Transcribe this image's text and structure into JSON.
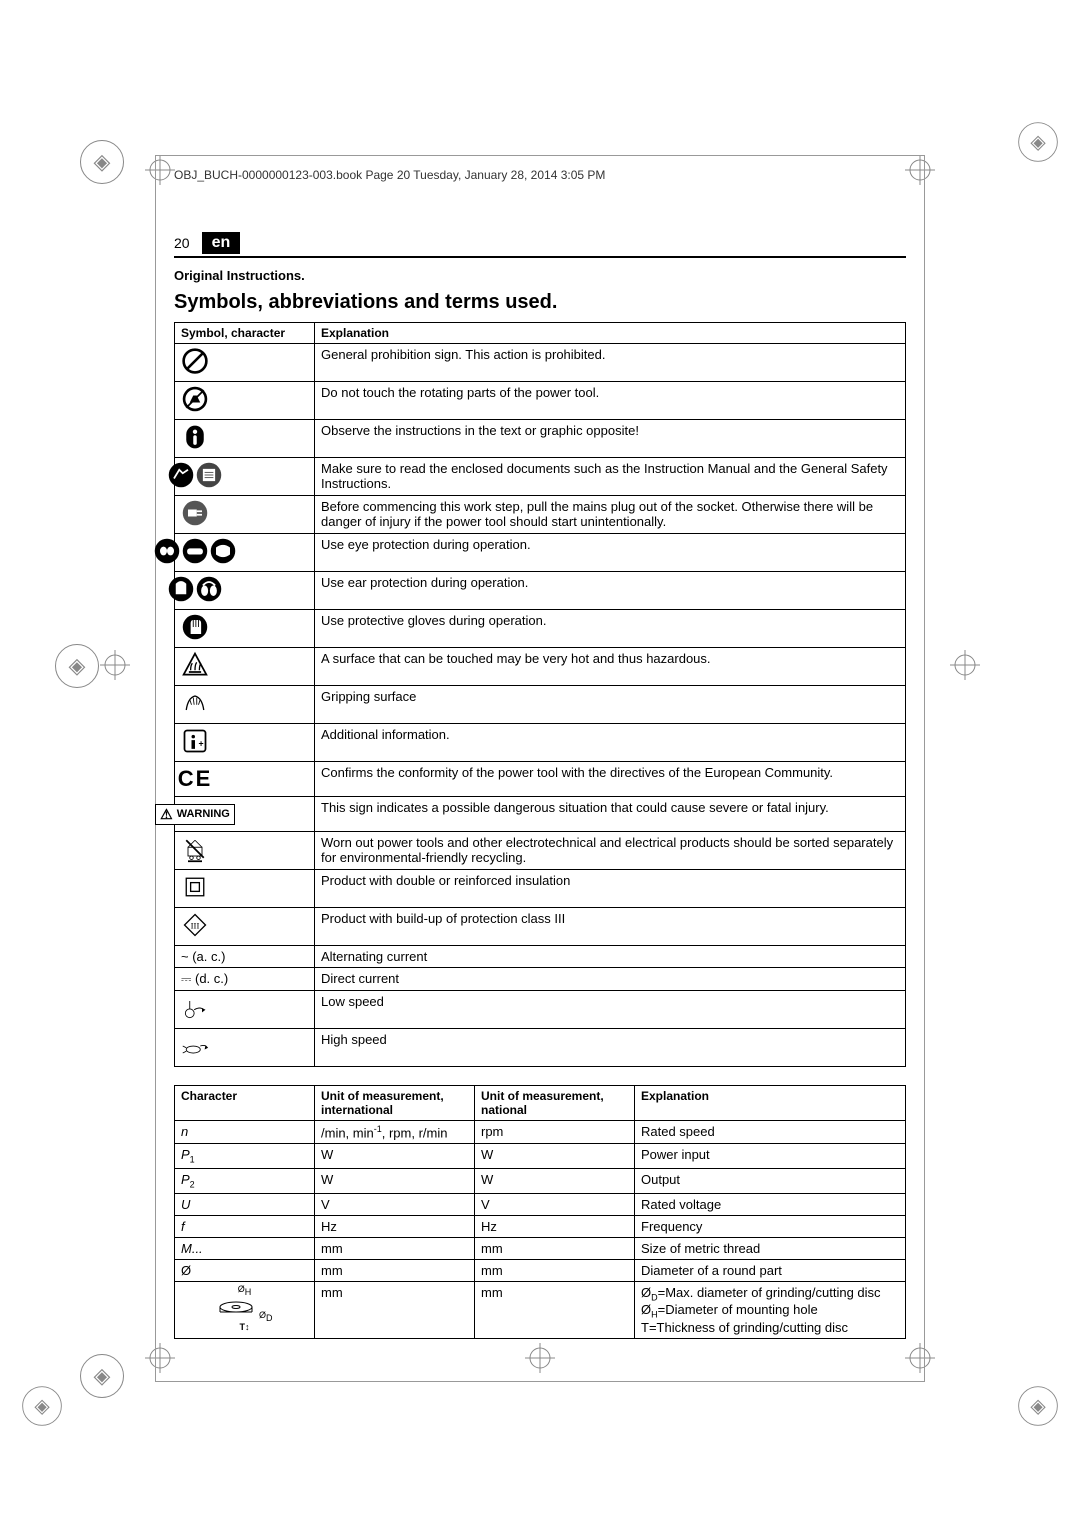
{
  "header": "OBJ_BUCH-0000000123-003.book  Page 20  Tuesday, January 28, 2014  3:05 PM",
  "page_number": "20",
  "lang": "en",
  "original": "Original Instructions.",
  "title": "Symbols, abbreviations and terms used.",
  "sym_headers": {
    "c1": "Symbol, character",
    "c2": "Explanation"
  },
  "symbols": [
    {
      "name": "prohibition-icon",
      "exp": "General prohibition sign. This action is prohibited."
    },
    {
      "name": "no-touch-icon",
      "exp": "Do not touch the rotating parts of the power tool."
    },
    {
      "name": "observe-icon",
      "exp": "Observe the instructions in the text or graphic opposite!"
    },
    {
      "name": "read-docs-icon",
      "exp": "Make sure to read the enclosed documents such as the Instruction Manual and the General Safety Instructions."
    },
    {
      "name": "unplug-icon",
      "exp": "Before commencing this work step, pull the mains plug out of the socket. Otherwise there will be danger of injury if the power tool should start unintentionally."
    },
    {
      "name": "eye-protection-icon",
      "exp": "Use eye protection during operation."
    },
    {
      "name": "ear-protection-icon",
      "exp": "Use ear protection during operation."
    },
    {
      "name": "gloves-icon",
      "exp": "Use protective gloves during operation."
    },
    {
      "name": "hot-surface-icon",
      "exp": "A surface that can be touched may be very hot and thus hazardous."
    },
    {
      "name": "grip-icon",
      "exp": "Gripping surface"
    },
    {
      "name": "info-icon",
      "exp": "Additional information."
    },
    {
      "name": "ce-icon",
      "exp": "Confirms the conformity of the power tool with the directives of the European Community."
    },
    {
      "name": "warning-badge",
      "exp": "This sign indicates a possible dangerous situation that could cause severe or fatal injury."
    },
    {
      "name": "weee-icon",
      "exp": "Worn out power tools and other electrotechnical and electrical products should be sorted separately for environmental-friendly recycling."
    },
    {
      "name": "class2-icon",
      "exp": "Product with double or reinforced insulation"
    },
    {
      "name": "class3-icon",
      "exp": "Product with build-up of protection class III"
    },
    {
      "name": "ac-icon",
      "char": "~ (a. c.)",
      "exp": "Alternating current"
    },
    {
      "name": "dc-icon",
      "char": "⎓ (d. c.)",
      "exp": "Direct current"
    },
    {
      "name": "low-speed-icon",
      "exp": "Low speed"
    },
    {
      "name": "high-speed-icon",
      "exp": "High speed"
    }
  ],
  "char_headers": {
    "c1": "Character",
    "c2": "Unit of measurement, international",
    "c3": "Unit of measurement, national",
    "c4": "Explanation"
  },
  "chars": [
    {
      "c": "n",
      "u1": "/min, min⁻¹, rpm, r/min",
      "u2": "rpm",
      "exp": "Rated speed"
    },
    {
      "c": "P₁",
      "u1": "W",
      "u2": "W",
      "exp": "Power input"
    },
    {
      "c": "P₂",
      "u1": "W",
      "u2": "W",
      "exp": "Output"
    },
    {
      "c": "U",
      "u1": "V",
      "u2": "V",
      "exp": "Rated voltage"
    },
    {
      "c": "f",
      "u1": "Hz",
      "u2": "Hz",
      "exp": "Frequency"
    },
    {
      "c": "M...",
      "u1": "mm",
      "u2": "mm",
      "exp": "Size of metric thread"
    },
    {
      "c": "Ø",
      "u1": "mm",
      "u2": "mm",
      "exp": "Diameter of a round part"
    },
    {
      "c": "disc",
      "u1": "mm",
      "u2": "mm",
      "exp": "Ø_D=Max. diameter of grinding/cutting disc\nØ_H=Diameter of mounting hole\nT=Thickness of grinding/cutting disc"
    }
  ],
  "warning_label": "WARNING",
  "colors": {
    "page_border": "#999999",
    "text": "#000000",
    "badge_bg": "#000000",
    "badge_fg": "#ffffff"
  }
}
